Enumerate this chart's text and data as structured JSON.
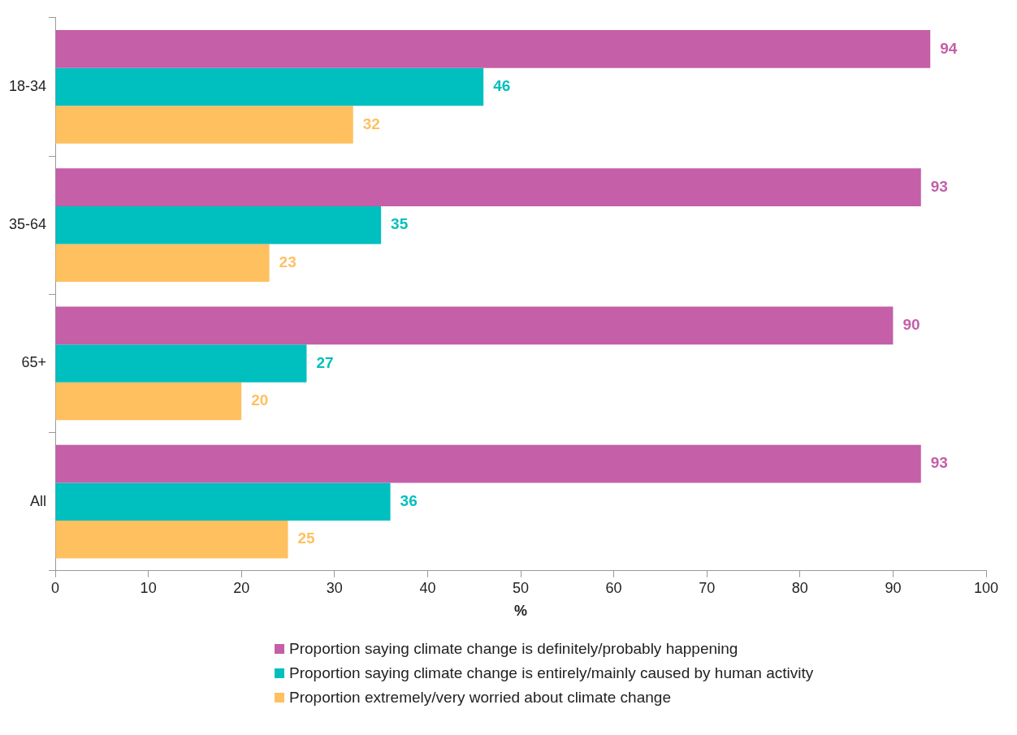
{
  "chart_data": {
    "type": "bar",
    "orientation": "horizontal",
    "categories": [
      "18-34",
      "35-64",
      "65+",
      "All"
    ],
    "xlabel": "%",
    "xlim": [
      0,
      100
    ],
    "xticks": [
      0,
      10,
      20,
      30,
      40,
      50,
      60,
      70,
      80,
      90,
      100
    ],
    "grid": false,
    "legend": "bottom",
    "data_labels": true,
    "series": [
      {
        "name": "Proportion saying climate change is definitely/probably happening",
        "color": "#c45fa8",
        "values": [
          94,
          93,
          90,
          93
        ]
      },
      {
        "name": "Proportion saying climate change is entirely/mainly caused by human activity",
        "color": "#00bfbf",
        "values": [
          46,
          35,
          27,
          36
        ]
      },
      {
        "name": "Proportion extremely/very worried about climate change",
        "color": "#ffc060",
        "values": [
          32,
          23,
          20,
          25
        ]
      }
    ]
  }
}
